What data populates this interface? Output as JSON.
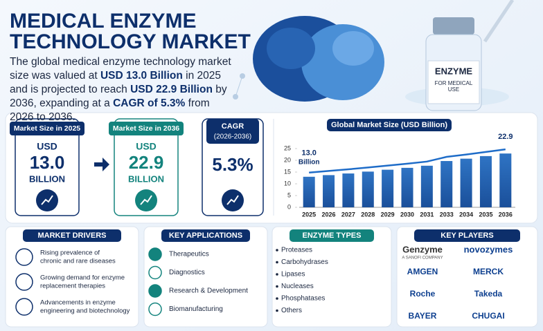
{
  "header": {
    "title_lines": [
      "MEDICAL ENZYME",
      "TECHNOLOGY MARKET"
    ],
    "description": [
      {
        "text": "The global medical enzyme technology market size was valued at "
      },
      {
        "text": "USD 13.0 Billion",
        "bold": true
      },
      {
        "text": " in 2025 and is projected to reach "
      },
      {
        "text": "USD 22.9 Billion",
        "bold": true
      },
      {
        "text": " by 2036, expanding at a "
      },
      {
        "text": "CAGR of 5.3%",
        "bold": true
      },
      {
        "text": " from 2026 to 2036."
      }
    ]
  },
  "illustration": {
    "vial_label": "ENZYME",
    "vial_sublabel": "FOR MEDICAL USE"
  },
  "stats": [
    {
      "label": "Market Size in 2025",
      "prefix": "USD",
      "value": "13.0",
      "unit": "BILLION"
    },
    {
      "label": "Market Size in 2036",
      "prefix": "USD",
      "value": "22.9",
      "unit": "BILLION"
    },
    {
      "label": "CAGR",
      "sublabel": "(2026-2036)",
      "value": "5.3%"
    }
  ],
  "chart_data": {
    "type": "bar",
    "title": "Global Market Size (USD Billion)",
    "categories": [
      "2025",
      "2026",
      "2027",
      "2028",
      "2029",
      "2030",
      "2031",
      "2033",
      "2034",
      "2035",
      "2036"
    ],
    "values": [
      13.0,
      13.7,
      14.4,
      15.2,
      16.0,
      16.8,
      17.7,
      19.7,
      20.7,
      21.8,
      22.9
    ],
    "value_labels": [
      "13.0",
      null,
      null,
      null,
      null,
      null,
      null,
      null,
      null,
      null,
      "22.9"
    ],
    "value_label_unit": "Billion",
    "color": "#2a6bb8",
    "ylim": [
      0,
      25
    ],
    "yticks": [
      0,
      5,
      10,
      15,
      20,
      25
    ],
    "grid": false
  },
  "panels": [
    {
      "title": "MARKET DRIVERS",
      "items": [
        [
          "Rising prevalence of",
          "chronic and rare diseases"
        ],
        [
          "Growing demand for enzyme",
          "replacement therapies"
        ],
        [
          "Advancements in enzyme",
          "engineering and biotechnology"
        ]
      ]
    },
    {
      "title": "KEY APPLICATIONS",
      "items": [
        "Therapeutics",
        "Diagnostics",
        "Research & Development",
        "Biomanufacturing"
      ]
    },
    {
      "title": "ENZYME TYPES",
      "items": [
        "Proteases",
        "Carbohydrases",
        "Lipases",
        "Nucleases",
        "Phosphatases",
        "Others"
      ]
    }
  ],
  "key_players": {
    "title": "KEY PLAYERS",
    "logos": [
      {
        "name": "Genzyme",
        "sub": "A SANOFI COMPANY"
      },
      {
        "name": "novozymes"
      },
      {
        "name": "AMGEN"
      },
      {
        "name": "MERCK"
      },
      {
        "name": "Roche"
      },
      {
        "name": "Takeda"
      },
      {
        "name": "BAYER"
      },
      {
        "name": "CHUGAI"
      }
    ]
  }
}
